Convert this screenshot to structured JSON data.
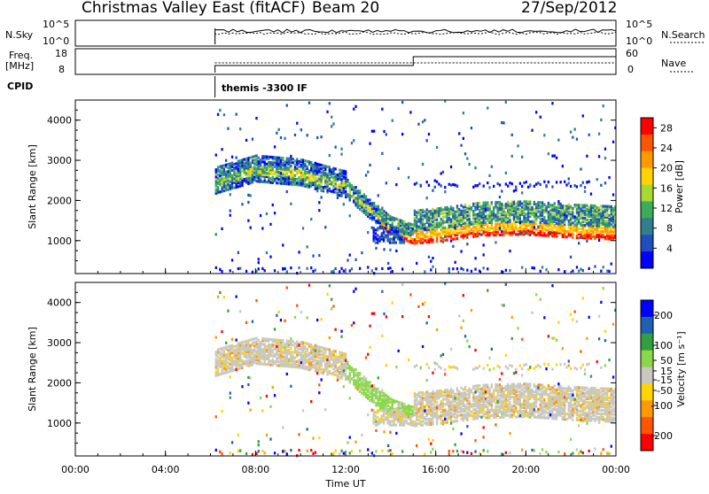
{
  "header": {
    "station": "Christmas Valley East (fitACF)",
    "beam": "Beam 20",
    "date": "27/Sep/2012"
  },
  "nsky_panel": {
    "left_label": "N.Sky",
    "left_ticks": [
      "10^5",
      "10^0"
    ],
    "right_ticks": [
      "10^5",
      "10^0"
    ],
    "right_label": "N.Search"
  },
  "freq_panel": {
    "left_label_1": "Freq.",
    "left_label_2": "[MHz]",
    "left_ticks": [
      "18",
      "8"
    ],
    "right_ticks": [
      "60",
      "0"
    ],
    "right_label": "Nave"
  },
  "cpid": {
    "label": "CPID",
    "value": "themis -3300 IF"
  },
  "colors": {
    "power_scale": [
      "#0000ff",
      "#1f4fbf",
      "#2f7f8f",
      "#3cab5a",
      "#a8d832",
      "#ffd400",
      "#ff9900",
      "#ff5500",
      "#ff0000"
    ],
    "velocity_scale": [
      "#ff0000",
      "#ff5500",
      "#ff9900",
      "#ffd400",
      "#c8c8c0",
      "#8ad848",
      "#2f9f3f",
      "#2060b0",
      "#0000ff"
    ]
  },
  "chart_data": [
    {
      "type": "heatmap",
      "panel": "power",
      "ylabel": "Slant Range [km]",
      "xlabel": "Time UT",
      "xlim": [
        0,
        24
      ],
      "ylim": [
        180,
        4500
      ],
      "x_tick_labels": [
        "00:00",
        "04:00",
        "08:00",
        "12:00",
        "16:00",
        "20:00",
        "00:00"
      ],
      "y_ticks": [
        1000,
        2000,
        3000,
        4000
      ],
      "colorbar_label": "Power [dB]",
      "colorbar_ticks": [
        28,
        24,
        20,
        16,
        12,
        8,
        4
      ],
      "colorbar_range": [
        0,
        30
      ],
      "data_start_time": 6.2,
      "data_end_time": 24.0,
      "main_echo_range_by_hour": [
        {
          "t": 6.2,
          "range": 2300
        },
        {
          "t": 8,
          "range": 2600
        },
        {
          "t": 10,
          "range": 2500
        },
        {
          "t": 12,
          "range": 2200
        },
        {
          "t": 13,
          "range": 1700
        },
        {
          "t": 14,
          "range": 1250
        },
        {
          "t": 15,
          "range": 1050
        },
        {
          "t": 16,
          "range": 1100
        },
        {
          "t": 18,
          "range": 1250
        },
        {
          "t": 20,
          "range": 1280
        },
        {
          "t": 22,
          "range": 1200
        },
        {
          "t": 24,
          "range": 1150
        }
      ]
    },
    {
      "type": "heatmap",
      "panel": "velocity",
      "ylabel": "Slant Range [km]",
      "xlabel": "Time UT",
      "xlim": [
        0,
        24
      ],
      "ylim": [
        180,
        4500
      ],
      "x_tick_labels": [
        "00:00",
        "04:00",
        "08:00",
        "12:00",
        "16:00",
        "20:00",
        "00:00"
      ],
      "y_ticks": [
        1000,
        2000,
        3000,
        4000
      ],
      "colorbar_label": "Velocity [m s⁻¹]",
      "colorbar_ticks": [
        200,
        100,
        50,
        15,
        -15,
        -50,
        -100,
        -200
      ],
      "colorbar_range": [
        -250,
        250
      ]
    }
  ],
  "x_axis": {
    "label": "Time UT",
    "ticks": [
      "00:00",
      "04:00",
      "08:00",
      "12:00",
      "16:00",
      "20:00",
      "00:00"
    ]
  }
}
